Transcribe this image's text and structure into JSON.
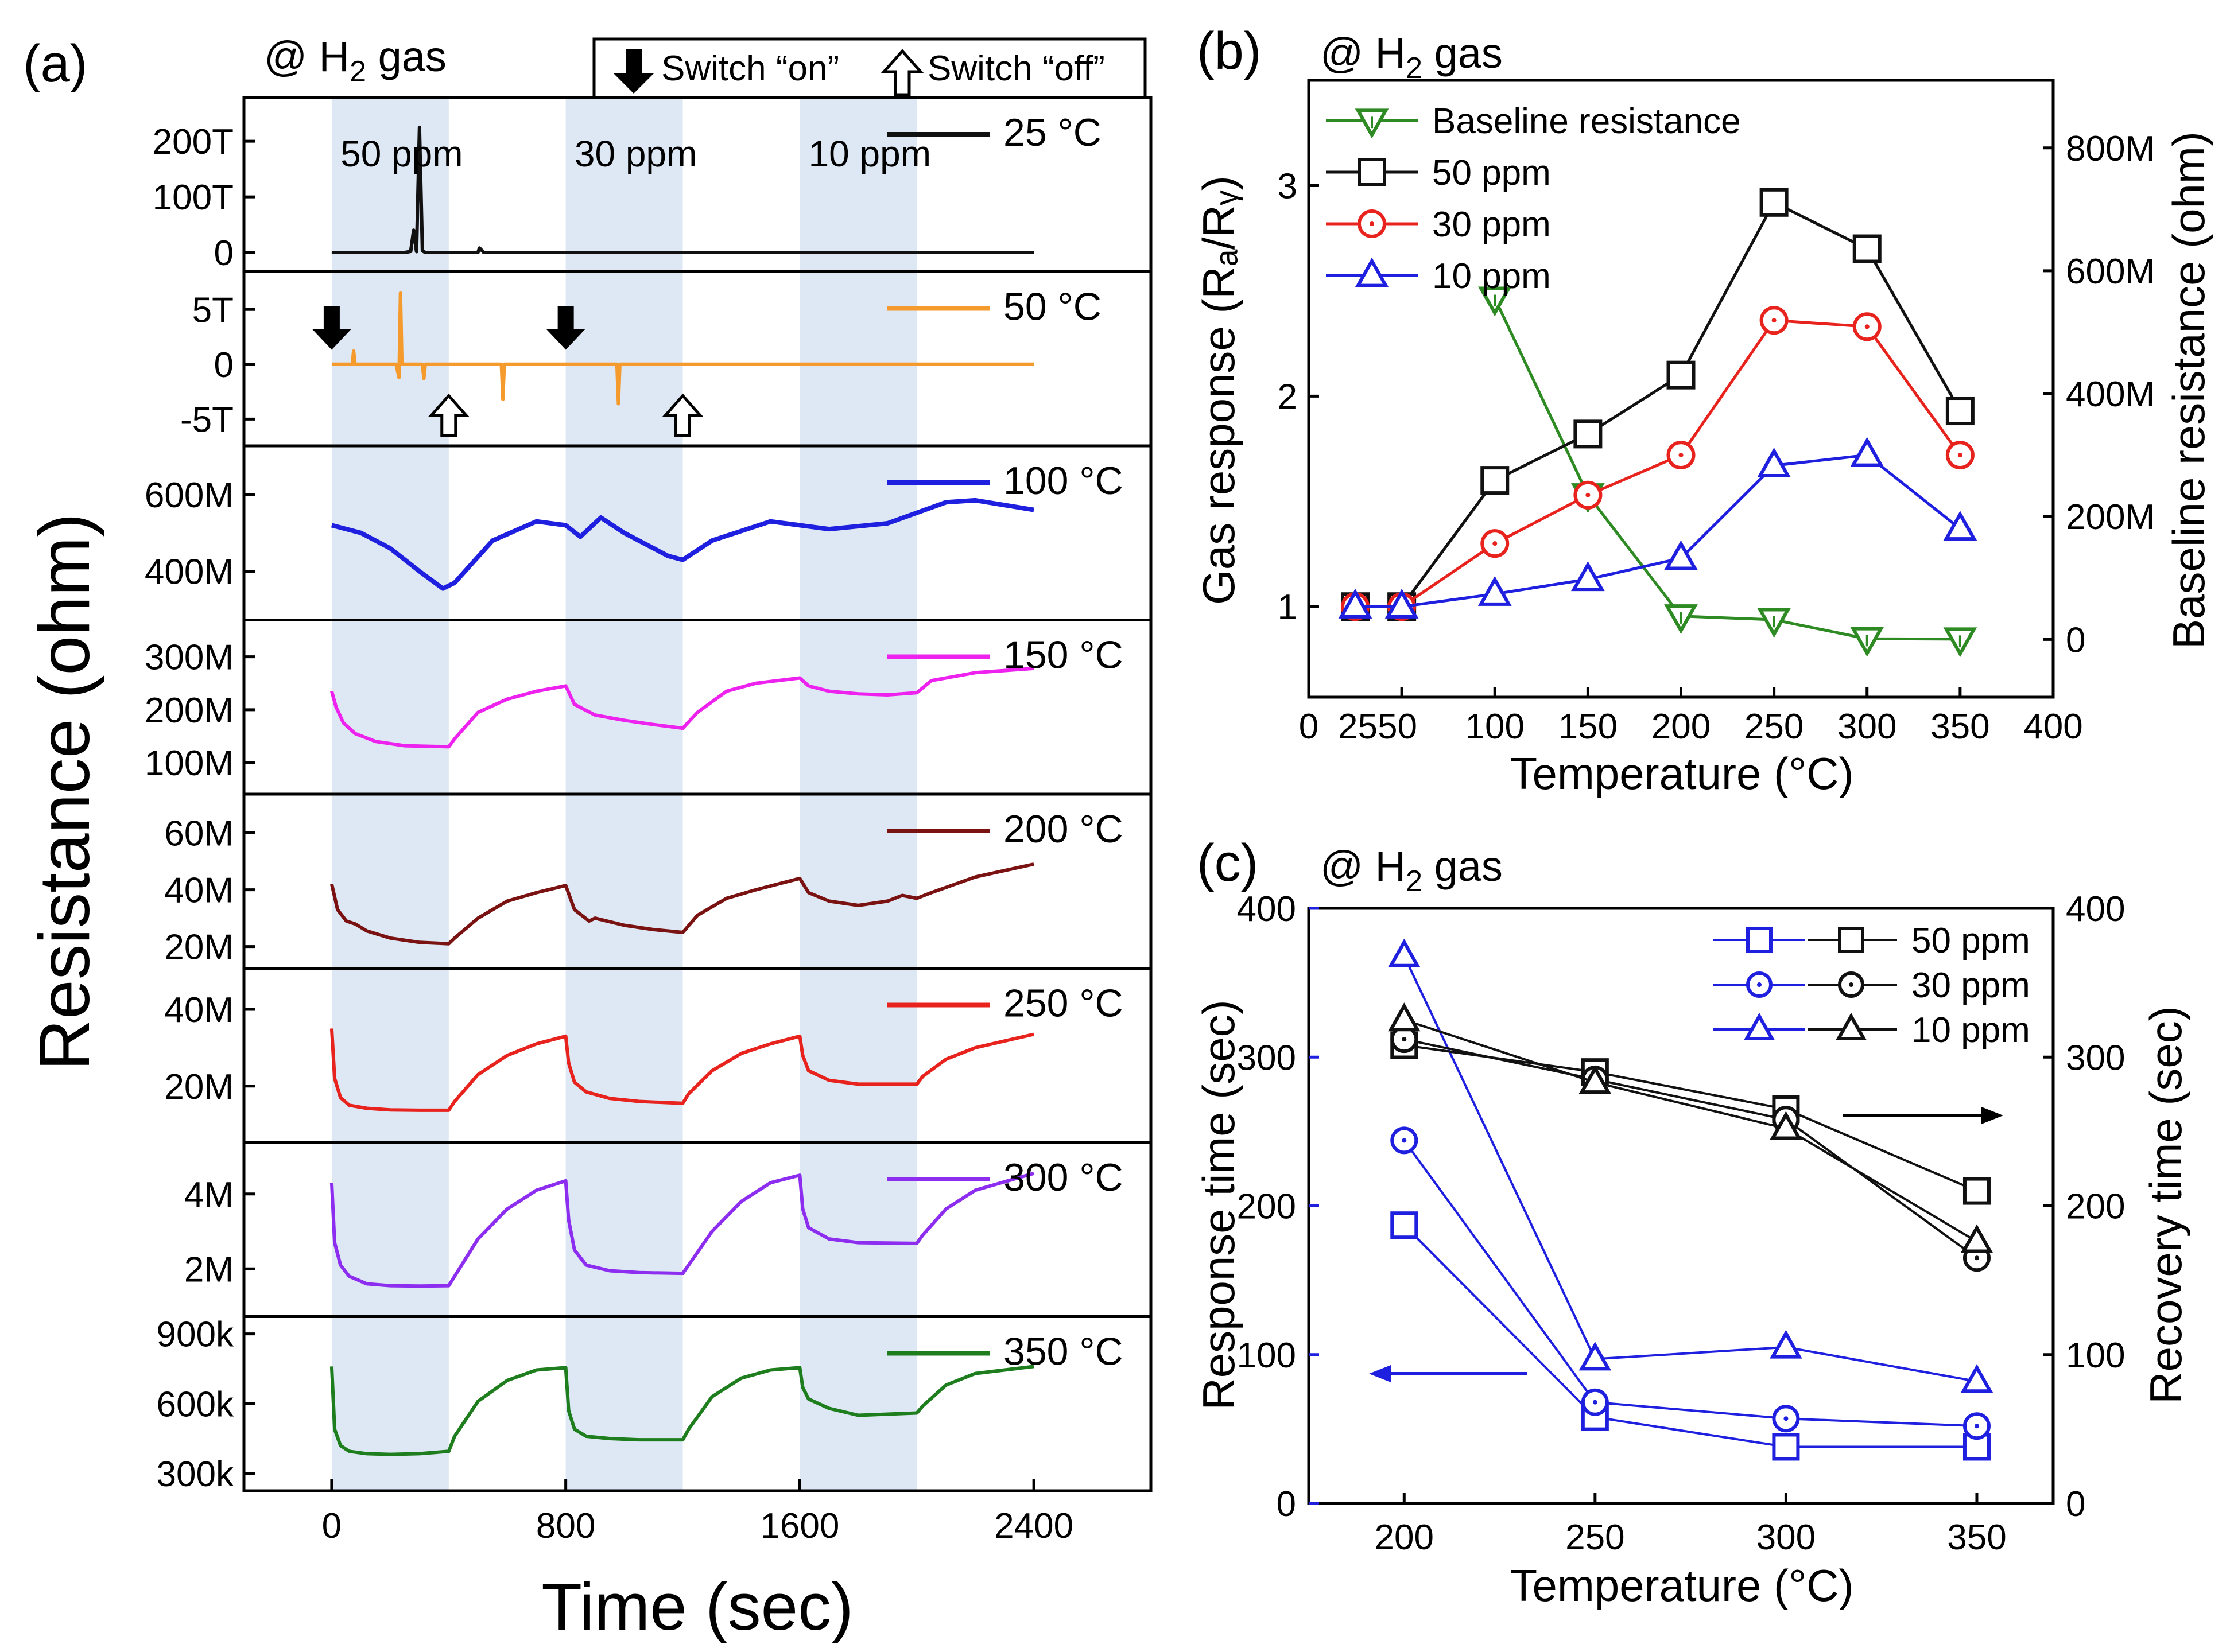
{
  "colors": {
    "shade": "#dde8f4",
    "blue": "#1f1fe0",
    "red": "#e8221c",
    "green": "#2e8a22",
    "black": "#111111",
    "orange": "#f59a2c",
    "magenta": "#ee22ee",
    "maroon": "#7a1212",
    "violet": "#8c2df0",
    "darkgreen": "#1e7e1e"
  },
  "panel_a": {
    "label": "(a)",
    "subtitle_prefix": "@ H",
    "subtitle_sub": "2",
    "subtitle_suffix": " gas",
    "switch_on": "Switch “on”",
    "switch_off": "Switch “off”",
    "on_icon": "down-arrow-icon",
    "off_icon": "up-arrow-outline-icon",
    "conc_labels": [
      "50 ppm",
      "30 ppm",
      "10 ppm"
    ],
    "xlabel": "Time (sec)",
    "ylabel": "Resistance (ohm)",
    "x_ticks": [
      "0",
      "800",
      "1600",
      "2400"
    ]
  },
  "panel_b": {
    "label": "(b)",
    "subtitle_prefix": "@ H",
    "subtitle_sub": "2",
    "subtitle_suffix": " gas",
    "xlabel": "Temperature (°C)",
    "ylabel": "Gas response (Rₐ/Rᵧ)",
    "ylabel_right": "Baseline resistance (ohm)",
    "x_ticks": [
      "0",
      "2550",
      "100",
      "150",
      "200",
      "250",
      "300",
      "350",
      "400"
    ],
    "y_ticks": [
      "1",
      "2",
      "3"
    ],
    "y_ticks_right": [
      "0",
      "200M",
      "400M",
      "600M",
      "800M"
    ],
    "legend": [
      "Baseline resistance",
      "50 ppm",
      "30 ppm",
      "10 ppm"
    ]
  },
  "panel_c": {
    "label": "(c)",
    "subtitle_prefix": "@ H",
    "subtitle_sub": "2",
    "subtitle_suffix": " gas",
    "xlabel": "Temperature (°C)",
    "ylabel": "Response time (sec)",
    "ylabel_right": "Recovery time (sec)",
    "x_ticks": [
      "200",
      "250",
      "300",
      "350"
    ],
    "y_ticks": [
      "0",
      "100",
      "200",
      "300",
      "400"
    ],
    "y_ticks_right": [
      "0",
      "100",
      "200",
      "300",
      "400"
    ],
    "legend": [
      "50 ppm",
      "30 ppm",
      "10 ppm"
    ]
  },
  "chart_data": [
    {
      "type": "line",
      "id": "a",
      "title": "@ H2 gas",
      "xlabel": "Time (sec)",
      "ylabel": "Resistance (ohm)",
      "xlim": [
        -300,
        2800
      ],
      "gas_on_intervals": [
        [
          0,
          400
        ],
        [
          800,
          1200
        ],
        [
          1600,
          2000
        ]
      ],
      "interval_labels": [
        "50 ppm",
        "30 ppm",
        "10 ppm"
      ],
      "switch_on_times": [
        0,
        800
      ],
      "switch_off_times": [
        400,
        1200
      ],
      "series": [
        {
          "name": "25 °C",
          "ticks": [
            "0",
            "100T",
            "200T"
          ],
          "ylim": [
            -16000000000000.0,
            260000000000000.0
          ],
          "x": [
            0,
            250,
            270,
            280,
            290,
            300,
            310,
            320,
            500,
            505,
            520,
            1250,
            1300,
            2400
          ],
          "values": [
            0,
            0,
            2000000000000.0,
            40000000000000.0,
            1500000000000.0,
            225000000000000.0,
            3000000000000.0,
            0,
            0,
            8000000000000.0,
            0,
            0,
            0,
            0
          ]
        },
        {
          "name": "50 °C",
          "ticks": [
            "-5T",
            "0",
            "5T"
          ],
          "ylim": [
            -6500000000000.0,
            7500000000000.0
          ],
          "x": [
            0,
            70,
            75,
            80,
            220,
            230,
            235,
            240,
            310,
            315,
            320,
            580,
            585,
            590,
            975,
            980,
            985,
            1200,
            2400
          ],
          "values": [
            0,
            0,
            1200000000000.0,
            0,
            0,
            -1200000000000.0,
            6500000000000.0,
            0,
            0,
            -1300000000000.0,
            0,
            0,
            -3200000000000.0,
            0,
            0,
            -3600000000000.0,
            0,
            0,
            0
          ]
        },
        {
          "name": "100 °C",
          "ticks": [
            "400M",
            "600M"
          ],
          "ylim": [
            300000000.0,
            700000000.0
          ],
          "x": [
            0,
            100,
            200,
            300,
            380,
            420,
            550,
            700,
            800,
            850,
            920,
            1000,
            1150,
            1200,
            1300,
            1500,
            1600,
            1700,
            1900,
            2100,
            2200,
            2400
          ],
          "values": [
            520000000.0,
            500000000.0,
            460000000.0,
            400000000.0,
            355000000.0,
            370000000.0,
            480000000.0,
            530000000.0,
            520000000.0,
            490000000.0,
            540000000.0,
            500000000.0,
            440000000.0,
            430000000.0,
            480000000.0,
            530000000.0,
            520000000.0,
            510000000.0,
            525000000.0,
            580000000.0,
            585000000.0,
            560000000.0
          ]
        },
        {
          "name": "150 °C",
          "ticks": [
            "100M",
            "200M",
            "300M"
          ],
          "ylim": [
            60000000.0,
            350000000.0
          ],
          "x": [
            0,
            15,
            40,
            80,
            150,
            250,
            400,
            420,
            500,
            600,
            700,
            800,
            830,
            900,
            1000,
            1100,
            1200,
            1250,
            1350,
            1450,
            1600,
            1630,
            1700,
            1800,
            1900,
            2000,
            2050,
            2200,
            2400
          ],
          "values": [
            235000000.0,
            205000000.0,
            175000000.0,
            155000000.0,
            140000000.0,
            132000000.0,
            130000000.0,
            145000000.0,
            195000000.0,
            220000000.0,
            235000000.0,
            245000000.0,
            210000000.0,
            190000000.0,
            180000000.0,
            172000000.0,
            165000000.0,
            195000000.0,
            235000000.0,
            250000000.0,
            260000000.0,
            245000000.0,
            235000000.0,
            230000000.0,
            228000000.0,
            232000000.0,
            255000000.0,
            270000000.0,
            278000000.0
          ]
        },
        {
          "name": "200 °C",
          "ticks": [
            "20M",
            "40M",
            "60M"
          ],
          "ylim": [
            16000000.0,
            70000000.0
          ],
          "x": [
            0,
            20,
            50,
            80,
            120,
            200,
            300,
            400,
            420,
            500,
            600,
            700,
            800,
            830,
            880,
            900,
            1000,
            1100,
            1200,
            1250,
            1350,
            1450,
            1600,
            1630,
            1700,
            1800,
            1900,
            1950,
            2000,
            2050,
            2200,
            2400
          ],
          "values": [
            42000000.0,
            33000000.0,
            29000000.0,
            28000000.0,
            25500000.0,
            23000000.0,
            21500000.0,
            21000000.0,
            23000000.0,
            30000000.0,
            36000000.0,
            39000000.0,
            41500000.0,
            33000000.0,
            29000000.0,
            30000000.0,
            27500000.0,
            26000000.0,
            25000000.0,
            31000000.0,
            37000000.0,
            40000000.0,
            44000000.0,
            39000000.0,
            36000000.0,
            34500000.0,
            36000000.0,
            38000000.0,
            37000000.0,
            39000000.0,
            44500000.0,
            49000000.0
          ]
        },
        {
          "name": "250 °C",
          "ticks": [
            "20M",
            "40M"
          ],
          "ylim": [
            8000000.0,
            48000000.0
          ],
          "x": [
            0,
            10,
            30,
            60,
            120,
            200,
            300,
            400,
            420,
            500,
            600,
            700,
            800,
            810,
            830,
            870,
            950,
            1050,
            1200,
            1220,
            1300,
            1400,
            1500,
            1600,
            1610,
            1630,
            1700,
            1800,
            2000,
            2020,
            2100,
            2200,
            2400
          ],
          "values": [
            35000000.0,
            22000000.0,
            17000000.0,
            15000000.0,
            14200000.0,
            13800000.0,
            13700000.0,
            13700000.0,
            16000000.0,
            23000000.0,
            28000000.0,
            31000000.0,
            33000000.0,
            26000000.0,
            21000000.0,
            18500000.0,
            16800000.0,
            16000000.0,
            15500000.0,
            18000000.0,
            24000000.0,
            28500000.0,
            31000000.0,
            33000000.0,
            28000000.0,
            24000000.0,
            21500000.0,
            20500000.0,
            20500000.0,
            22500000.0,
            27000000.0,
            30000000.0,
            33500000.0
          ]
        },
        {
          "name": "300 °C",
          "ticks": [
            "2M",
            "4M"
          ],
          "ylim": [
            1000000.0,
            5100000.0
          ],
          "x": [
            0,
            10,
            30,
            60,
            120,
            200,
            300,
            400,
            420,
            500,
            600,
            700,
            800,
            810,
            830,
            870,
            950,
            1050,
            1200,
            1220,
            1300,
            1400,
            1500,
            1600,
            1610,
            1630,
            1700,
            1800,
            2000,
            2020,
            2100,
            2200,
            2400
          ],
          "values": [
            4300000.0,
            2700000.0,
            2100000.0,
            1800000.0,
            1600000.0,
            1550000.0,
            1540000.0,
            1550000.0,
            1800000.0,
            2800000.0,
            3600000.0,
            4100000.0,
            4350000.0,
            3300000.0,
            2500000.0,
            2100000.0,
            1950000.0,
            1900000.0,
            1880000.0,
            2100000.0,
            3000000.0,
            3800000.0,
            4300000.0,
            4500000.0,
            3600000.0,
            3100000.0,
            2800000.0,
            2700000.0,
            2680000.0,
            2900000.0,
            3600000.0,
            4100000.0,
            4550000.0
          ]
        },
        {
          "name": "350 °C",
          "ticks": [
            "300k",
            "600k",
            "900k"
          ],
          "ylim": [
            270000.0,
            930000.0
          ],
          "x": [
            0,
            10,
            30,
            60,
            120,
            200,
            300,
            400,
            420,
            500,
            600,
            700,
            800,
            810,
            830,
            870,
            950,
            1050,
            1200,
            1220,
            1300,
            1400,
            1500,
            1600,
            1610,
            1630,
            1700,
            1800,
            2000,
            2020,
            2100,
            2200,
            2400
          ],
          "values": [
            760000.0,
            490000.0,
            420000.0,
            395000.0,
            385000.0,
            382000.0,
            385000.0,
            395000.0,
            460000.0,
            610000.0,
            700000.0,
            745000.0,
            755000.0,
            570000.0,
            490000.0,
            460000.0,
            450000.0,
            445000.0,
            445000.0,
            490000.0,
            630000.0,
            710000.0,
            745000.0,
            755000.0,
            670000.0,
            620000.0,
            580000.0,
            550000.0,
            560000.0,
            590000.0,
            680000.0,
            730000.0,
            760000.0
          ]
        }
      ]
    },
    {
      "type": "line",
      "id": "b",
      "title": "@ H2 gas",
      "xlabel": "Temperature (°C)",
      "ylabel": "Gas response (Ra/Rg)",
      "ylabel_right": "Baseline resistance (ohm)",
      "xlim": [
        0,
        400
      ],
      "ylim": [
        0.57,
        3.5
      ],
      "ylim_right": [
        -94000000.0,
        910000000.0
      ],
      "legend_position": "top-left",
      "series": [
        {
          "name": "Baseline resistance",
          "axis": "right",
          "marker": "triangle-down",
          "x": [
            100,
            150,
            200,
            250,
            300,
            350
          ],
          "values": [
            555000000.0,
            235000000.0,
            38000000.0,
            32000000.0,
            1100000.0,
            400000.0
          ]
        },
        {
          "name": "50 ppm",
          "axis": "left",
          "marker": "square",
          "x": [
            25,
            50,
            100,
            150,
            200,
            250,
            300,
            350
          ],
          "values": [
            1.0,
            1.0,
            1.6,
            1.82,
            2.1,
            2.92,
            2.7,
            1.93
          ]
        },
        {
          "name": "30 ppm",
          "axis": "left",
          "marker": "circle",
          "x": [
            25,
            50,
            100,
            150,
            200,
            250,
            300,
            350
          ],
          "values": [
            1.0,
            1.0,
            1.3,
            1.53,
            1.72,
            2.36,
            2.33,
            1.72
          ]
        },
        {
          "name": "10 ppm",
          "axis": "left",
          "marker": "triangle-up",
          "x": [
            25,
            50,
            100,
            150,
            200,
            250,
            300,
            350
          ],
          "values": [
            1.0,
            1.0,
            1.06,
            1.13,
            1.23,
            1.67,
            1.72,
            1.37
          ]
        }
      ]
    },
    {
      "type": "line",
      "id": "c",
      "title": "@ H2 gas",
      "xlabel": "Temperature (°C)",
      "ylabel": "Response time (sec)",
      "ylabel_right": "Recovery time (sec)",
      "xlim": [
        175,
        370
      ],
      "ylim": [
        0,
        400
      ],
      "ylim_right": [
        0,
        400
      ],
      "legend_position": "top-right",
      "series": [
        {
          "name": "50 ppm",
          "axis": "left",
          "marker": "square",
          "x": [
            200,
            250,
            300,
            350
          ],
          "values": [
            187,
            58,
            38,
            38
          ]
        },
        {
          "name": "30 ppm",
          "axis": "left",
          "marker": "circle",
          "x": [
            200,
            250,
            300,
            350
          ],
          "values": [
            244,
            68,
            57,
            52
          ]
        },
        {
          "name": "10 ppm",
          "axis": "left",
          "marker": "triangle-up",
          "x": [
            200,
            250,
            300,
            350
          ],
          "values": [
            368,
            97,
            105,
            82
          ]
        },
        {
          "name": "50 ppm",
          "axis": "right",
          "marker": "square",
          "x": [
            200,
            250,
            300,
            350
          ],
          "values": [
            308,
            290,
            265,
            210
          ]
        },
        {
          "name": "30 ppm",
          "axis": "right",
          "marker": "circle",
          "x": [
            200,
            250,
            300,
            350
          ],
          "values": [
            312,
            285,
            258,
            165
          ]
        },
        {
          "name": "10 ppm",
          "axis": "right",
          "marker": "triangle-up",
          "x": [
            200,
            250,
            300,
            350
          ],
          "values": [
            325,
            283,
            252,
            176
          ]
        }
      ]
    }
  ]
}
